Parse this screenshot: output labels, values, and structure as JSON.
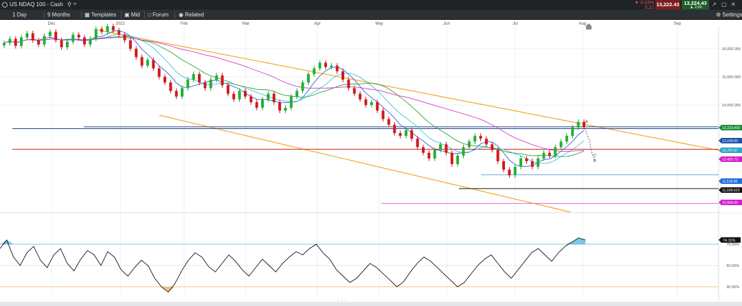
{
  "header": {
    "symbol": "US NDAQ 100 - Cash",
    "change_pct": "▼ 0.03%",
    "change_abs": "5.21",
    "bid": "13,222.43",
    "ask": "13,224.43",
    "spread": "▲ 2.00"
  },
  "toolbar": {
    "interval": "1 Day",
    "range": "9 Months",
    "templates": "Templates",
    "price_type": "Mid",
    "forum": "Forum",
    "related": "Related",
    "settings": "Settings"
  },
  "time_axis": {
    "labels": [
      "Dec",
      "2022",
      "Feb",
      "Mar",
      "Apr",
      "May",
      "Jun",
      "Jul",
      "Aug",
      "Sep"
    ]
  },
  "chart_data": [
    {
      "type": "candlestick",
      "title": "US NDAQ 100 - Cash",
      "interval": "1 Day",
      "y_ticks": [
        "16,000.000",
        "15,000.000",
        "14,000.000"
      ],
      "price_tags": [
        {
          "value": "13,223.430",
          "color": "#1e8a3a"
        },
        {
          "value": "13,160.00",
          "color": "#1f4fa8"
        },
        {
          "value": "12,707.87",
          "color": "#2aa6c8"
        },
        {
          "value": "12,425.73",
          "color": "#d01ccf"
        },
        {
          "value": "11,518.85",
          "color": "#1f6fd6"
        },
        {
          "value": "11,028.523",
          "color": "#111111"
        },
        {
          "value": "10,500.00",
          "color": "#d01ccf"
        }
      ],
      "horizontal_levels": [
        {
          "price": 13223.43,
          "color": "#1e3f8f"
        },
        {
          "price": 13160,
          "color": "#1e3f8f"
        },
        {
          "price": 12425.73,
          "color": "#d32020"
        },
        {
          "price": 11518.85,
          "color": "#6f9fe6"
        },
        {
          "price": 11028.52,
          "color": "#111111"
        },
        {
          "price": 10500,
          "color": "#e26be0"
        }
      ],
      "channel_color": "#f5a623",
      "wave_labels": [
        "A",
        "B",
        "C"
      ],
      "close": [
        16200,
        16350,
        16100,
        16400,
        16550,
        16300,
        16150,
        16450,
        16600,
        16300,
        16050,
        16250,
        16500,
        16400,
        16150,
        16350,
        16700,
        16600,
        16800,
        16650,
        16500,
        16300,
        16000,
        15700,
        15400,
        15600,
        15300,
        15000,
        14800,
        14500,
        14300,
        14600,
        14900,
        15100,
        14800,
        14600,
        14900,
        15050,
        14700,
        14400,
        14200,
        14500,
        14300,
        14100,
        13900,
        14200,
        14400,
        14100,
        13800,
        13900,
        14300,
        14500,
        14800,
        15100,
        15300,
        15500,
        15350,
        15400,
        15200,
        14900,
        14600,
        14400,
        14200,
        14000,
        14100,
        13800,
        13500,
        13300,
        13000,
        12900,
        13100,
        12800,
        12500,
        12300,
        12100,
        12400,
        12600,
        12300,
        11900,
        12200,
        12500,
        12700,
        12900,
        12800,
        12600,
        12400,
        12000,
        11700,
        11500,
        11800,
        12100,
        12000,
        11800,
        12100,
        12300,
        12200,
        12500,
        12700,
        12900,
        13200,
        13400,
        13223
      ]
    },
    {
      "type": "line",
      "title": "RSI",
      "value_tag": "74.11%",
      "y_ticks": [
        "70.00%",
        "50.00%",
        "30.00%"
      ],
      "levels": [
        70,
        50,
        30
      ],
      "values": [
        66,
        74,
        58,
        50,
        62,
        68,
        55,
        48,
        60,
        66,
        52,
        45,
        56,
        64,
        60,
        50,
        63,
        58,
        46,
        40,
        48,
        55,
        50,
        38,
        30,
        25,
        33,
        45,
        55,
        62,
        58,
        49,
        44,
        52,
        60,
        54,
        46,
        40,
        48,
        56,
        50,
        44,
        52,
        58,
        63,
        60,
        66,
        70,
        62,
        56,
        46,
        40,
        34,
        38,
        45,
        52,
        48,
        42,
        36,
        30,
        35,
        44,
        52,
        58,
        54,
        48,
        42,
        36,
        30,
        34,
        42,
        50,
        56,
        60,
        52,
        44,
        38,
        46,
        54,
        62,
        66,
        60,
        54,
        62,
        68,
        72,
        76,
        74
      ]
    }
  ]
}
